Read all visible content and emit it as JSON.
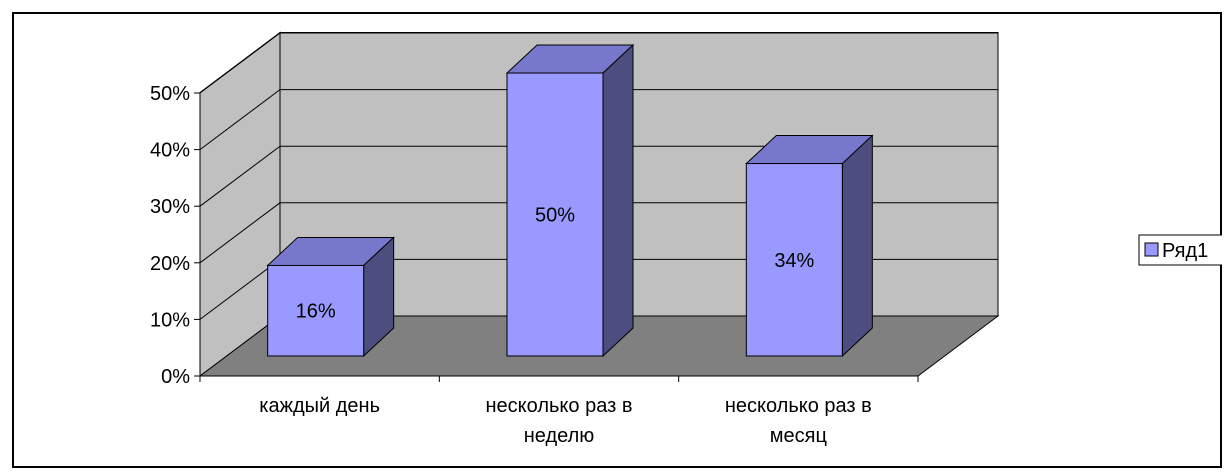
{
  "chart_data": {
    "type": "bar",
    "title": "",
    "xlabel": "",
    "ylabel": "",
    "categories": [
      [
        "каждый день"
      ],
      [
        "несколько раз в",
        "неделю"
      ],
      [
        "несколько раз в",
        "месяц"
      ]
    ],
    "series": [
      {
        "name": "Ряд1",
        "values": [
          16,
          50,
          34
        ],
        "color": "#9999ff"
      }
    ],
    "data_labels": [
      "16%",
      "50%",
      "34%"
    ],
    "ylim": [
      0,
      50
    ],
    "yticks": [
      0,
      10,
      20,
      30,
      40,
      50
    ],
    "ytick_labels": [
      "0%",
      "10%",
      "20%",
      "30%",
      "40%",
      "50%"
    ],
    "grid": true,
    "legend": {
      "position": "right",
      "entries": [
        "Ряд1"
      ]
    },
    "style": "3d-column",
    "colors": {
      "wall": "#c0c0c0",
      "floor": "#808080",
      "bar_front": "#9999ff",
      "bar_top": "#7777cc",
      "bar_side": "#4d4d80"
    }
  }
}
